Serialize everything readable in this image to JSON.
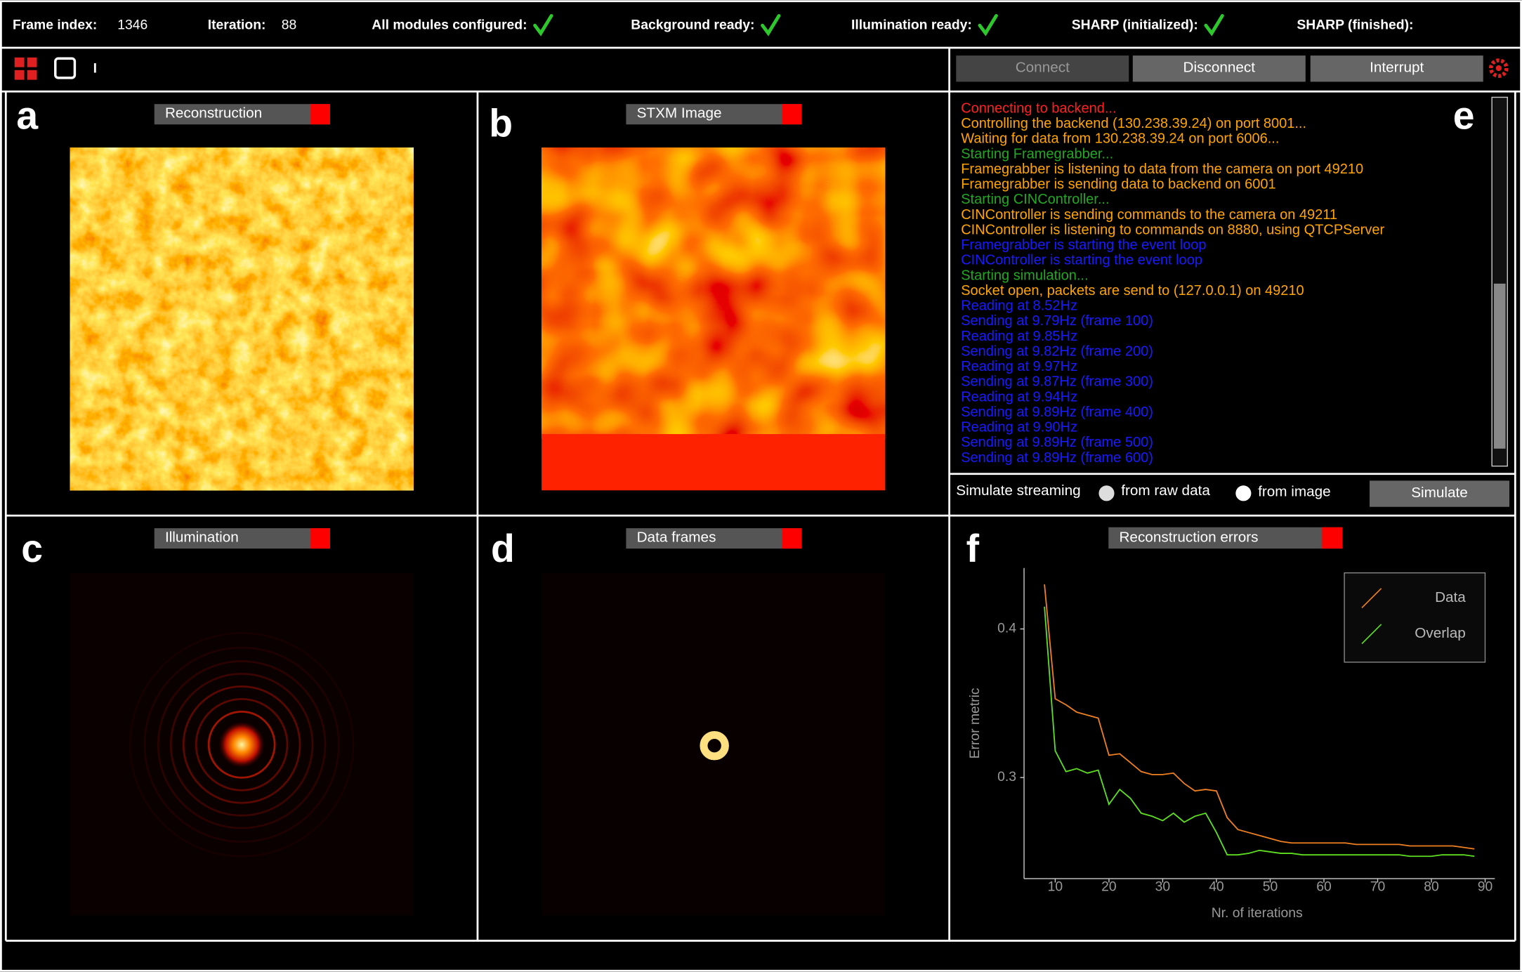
{
  "status_bar": {
    "frame_index_label": "Frame index:",
    "frame_index": 1346,
    "iteration_label": "Iteration:",
    "iteration": 88,
    "flags": [
      {
        "label": "All modules configured:",
        "done": true
      },
      {
        "label": "Background ready:",
        "done": true
      },
      {
        "label": "Illumination ready:",
        "done": true
      },
      {
        "label": "SHARP (initialized):",
        "done": true
      },
      {
        "label": "SHARP (finished):",
        "done": false
      }
    ]
  },
  "toolbar": {
    "cursor": "I"
  },
  "buttons": {
    "connect": "Connect",
    "disconnect": "Disconnect",
    "interrupt": "Interrupt"
  },
  "panels": [
    {
      "letter": "a",
      "title": "Reconstruction"
    },
    {
      "letter": "b",
      "title": "STXM Image"
    },
    {
      "letter": "c",
      "title": "Illumination"
    },
    {
      "letter": "d",
      "title": "Data frames"
    }
  ],
  "log": {
    "letter": "e",
    "lines": [
      {
        "text": "Connecting to backend...",
        "color": "#ff2020"
      },
      {
        "text": "Controlling the backend (130.238.39.24) on port 8001...",
        "color": "#ffa500"
      },
      {
        "text": "Waiting for data from 130.238.39.24 on port 6006...",
        "color": "#ffa500"
      },
      {
        "text": "Starting Framegrabber...",
        "color": "#22a822"
      },
      {
        "text": "Framegrabber is listening to data from the camera on port 49210",
        "color": "#ffa500"
      },
      {
        "text": "Framegrabber is sending data to backend on 6001",
        "color": "#ffa500"
      },
      {
        "text": "Starting CINController...",
        "color": "#22a822"
      },
      {
        "text": "CINController is sending commands to the camera on 49211",
        "color": "#ffa500"
      },
      {
        "text": "CINController is listening to commands on 8880, using QTCPServer",
        "color": "#ffa500"
      },
      {
        "text": "Framegrabber is starting the event loop",
        "color": "#1a1aff"
      },
      {
        "text": "CINController is starting the event loop",
        "color": "#1a1aff"
      },
      {
        "text": "Starting simulation...",
        "color": "#22a822"
      },
      {
        "text": "Socket open, packets are send to (127.0.0.1) on 49210",
        "color": "#ffa500"
      },
      {
        "text": "Reading at 8.52Hz",
        "color": "#1a1aff"
      },
      {
        "text": "Sending at 9.79Hz (frame 100)",
        "color": "#1a1aff"
      },
      {
        "text": "Reading at 9.85Hz",
        "color": "#1a1aff"
      },
      {
        "text": "Sending at 9.82Hz (frame 200)",
        "color": "#1a1aff"
      },
      {
        "text": "Reading at 9.97Hz",
        "color": "#1a1aff"
      },
      {
        "text": "Sending at 9.87Hz (frame 300)",
        "color": "#1a1aff"
      },
      {
        "text": "Reading at 9.94Hz",
        "color": "#1a1aff"
      },
      {
        "text": "Sending at 9.89Hz (frame 400)",
        "color": "#1a1aff"
      },
      {
        "text": "Reading at 9.90Hz",
        "color": "#1a1aff"
      },
      {
        "text": "Sending at 9.89Hz (frame 500)",
        "color": "#1a1aff"
      },
      {
        "text": "Sending at 9.89Hz (frame 600)",
        "color": "#1a1aff"
      }
    ]
  },
  "simulate": {
    "label": "Simulate streaming",
    "options": [
      "from raw data",
      "from image"
    ],
    "button": "Simulate"
  },
  "errors_panel": {
    "letter": "f",
    "title": "Reconstruction errors"
  },
  "chart_data": {
    "type": "line",
    "xlabel": "Nr. of iterations",
    "ylabel": "Error metric",
    "x": [
      8,
      10,
      12,
      14,
      16,
      18,
      20,
      22,
      24,
      26,
      28,
      30,
      32,
      34,
      36,
      38,
      40,
      42,
      44,
      46,
      48,
      50,
      52,
      54,
      56,
      58,
      60,
      62,
      64,
      66,
      68,
      70,
      72,
      74,
      76,
      78,
      80,
      82,
      84,
      86,
      88
    ],
    "series": [
      {
        "name": "Data",
        "color": "#f08020",
        "values": [
          0.43,
          0.353,
          0.349,
          0.344,
          0.342,
          0.34,
          0.315,
          0.316,
          0.31,
          0.304,
          0.302,
          0.302,
          0.303,
          0.296,
          0.291,
          0.292,
          0.291,
          0.273,
          0.265,
          0.263,
          0.261,
          0.259,
          0.257,
          0.256,
          0.256,
          0.256,
          0.256,
          0.256,
          0.256,
          0.255,
          0.255,
          0.255,
          0.255,
          0.255,
          0.254,
          0.254,
          0.254,
          0.254,
          0.254,
          0.253,
          0.252
        ]
      },
      {
        "name": "Overlap",
        "color": "#5ee020",
        "values": [
          0.415,
          0.318,
          0.304,
          0.306,
          0.303,
          0.305,
          0.282,
          0.292,
          0.286,
          0.276,
          0.274,
          0.271,
          0.276,
          0.27,
          0.274,
          0.276,
          0.263,
          0.248,
          0.248,
          0.249,
          0.251,
          0.25,
          0.249,
          0.249,
          0.248,
          0.248,
          0.248,
          0.248,
          0.248,
          0.248,
          0.248,
          0.248,
          0.248,
          0.248,
          0.247,
          0.247,
          0.247,
          0.248,
          0.248,
          0.248,
          0.247
        ]
      }
    ],
    "xlim": [
      4.2,
      91.8
    ],
    "ylim": [
      0.232,
      0.441
    ],
    "xticks": [
      10,
      20,
      30,
      40,
      50,
      60,
      70,
      80,
      90
    ],
    "yticks": [
      0.3,
      0.4
    ],
    "legend": "upper right"
  }
}
